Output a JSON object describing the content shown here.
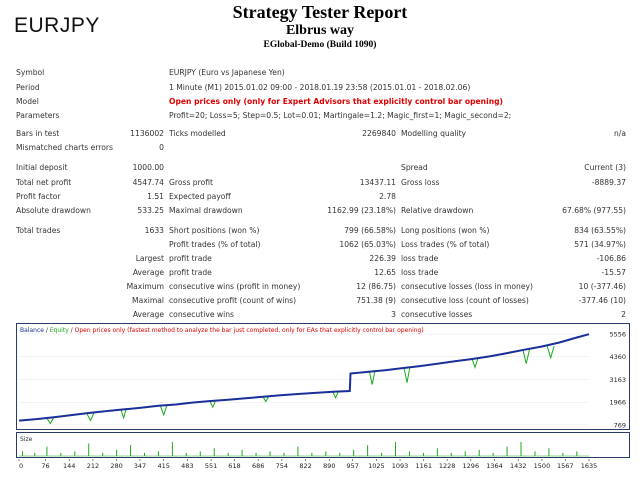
{
  "header": {
    "symbol": "EURJPY",
    "title": "Strategy Tester Report",
    "subtitle": "Elbrus way",
    "server": "EGlobal-Demo (Build 1090)"
  },
  "info": {
    "symbol_label": "Symbol",
    "symbol_value": "EURJPY (Euro vs Japanese Yen)",
    "period_label": "Period",
    "period_value": "1 Minute (M1) 2015.01.02 09:00 - 2018.01.19 23:58 (2015.01.01 - 2018.02.06)",
    "model_label": "Model",
    "model_value": "Open prices only (only for Expert Advisors that explicitly control bar opening)",
    "params_label": "Parameters",
    "params_value": "Profit=20; Loss=5; Step=0.5; Lot=0.01; Martingale=1.2; Magic_first=1; Magic_second=2;"
  },
  "bars": {
    "bars_label": "Bars in test",
    "bars_value": "1136002",
    "ticks_label": "Ticks modelled",
    "ticks_value": "2269840",
    "quality_label": "Modelling quality",
    "quality_value": "n/a",
    "mismatch_label": "Mismatched charts errors",
    "mismatch_value": "0"
  },
  "results": {
    "initial_deposit_label": "Initial deposit",
    "initial_deposit": "1000.00",
    "spread_label": "Spread",
    "spread": "Current (3)",
    "net_profit_label": "Total net profit",
    "net_profit": "4547.74",
    "gross_profit_label": "Gross profit",
    "gross_profit": "13437.11",
    "gross_loss_label": "Gross loss",
    "gross_loss": "-8889.37",
    "profit_factor_label": "Profit factor",
    "profit_factor": "1.51",
    "expected_payoff_label": "Expected payoff",
    "expected_payoff": "2.78",
    "abs_dd_label": "Absolute drawdown",
    "abs_dd": "533.25",
    "max_dd_label": "Maximal drawdown",
    "max_dd": "1162.99 (23.18%)",
    "rel_dd_label": "Relative drawdown",
    "rel_dd": "67.68% (977.55)"
  },
  "trades": {
    "total_label": "Total trades",
    "total": "1633",
    "short_label": "Short positions (won %)",
    "short": "799 (66.58%)",
    "long_label": "Long positions (won %)",
    "long": "834 (63.55%)",
    "profit_trades_label": "Profit trades (% of total)",
    "profit_trades": "1062 (65.03%)",
    "loss_trades_label": "Loss trades (% of total)",
    "loss_trades": "571 (34.97%)",
    "largest_label": "Largest",
    "largest_profit_label": "profit trade",
    "largest_profit": "226.39",
    "largest_loss_label": "loss trade",
    "largest_loss": "-106.86",
    "average_label": "Average",
    "average_profit_label": "profit trade",
    "average_profit": "12.65",
    "average_loss_label": "loss trade",
    "average_loss": "-15.57",
    "maximum_label": "Maximum",
    "max_cons_wins_label": "consecutive wins (profit in money)",
    "max_cons_wins": "12 (86.75)",
    "max_cons_losses_label": "consecutive losses (loss in money)",
    "max_cons_losses": "10 (-377.46)",
    "maximal_label": "Maximal",
    "maximal_cons_profit_label": "consecutive profit (count of wins)",
    "maximal_cons_profit": "751.38 (9)",
    "maximal_cons_loss_label": "consecutive loss (count of losses)",
    "maximal_cons_loss": "-377.46 (10)",
    "avg_label": "Average",
    "avg_cons_wins_label": "consecutive wins",
    "avg_cons_wins": "3",
    "avg_cons_losses_label": "consecutive losses",
    "avg_cons_losses": "2"
  },
  "chart_data": {
    "type": "line",
    "legend": {
      "balance": "Balance",
      "sep1": " / ",
      "equity": "Equity",
      "sep2": " / ",
      "note": "Open prices only (fastest method to analyze the bar just completed, only for EAs that explicitly control bar opening)"
    },
    "colors": {
      "balance": "#1a2f9a",
      "equity": "#1aaa1a",
      "note": "#e00000",
      "size": "#1aaa1a"
    },
    "y_ticks": [
      5556,
      4360,
      3163,
      1966,
      769
    ],
    "ylim": [
      769,
      5556
    ],
    "x_ticks": [
      0,
      76,
      144,
      212,
      280,
      347,
      415,
      483,
      551,
      618,
      686,
      754,
      822,
      890,
      957,
      1025,
      1093,
      1161,
      1228,
      1296,
      1364,
      1432,
      1500,
      1567,
      1635
    ],
    "xlim": [
      0,
      1635
    ],
    "series": [
      {
        "name": "Balance",
        "x": [
          0,
          50,
          100,
          150,
          200,
          250,
          300,
          350,
          400,
          450,
          500,
          550,
          600,
          650,
          700,
          750,
          800,
          850,
          900,
          949,
          951,
          1000,
          1050,
          1100,
          1150,
          1200,
          1250,
          1300,
          1350,
          1400,
          1450,
          1500,
          1550,
          1600,
          1635
        ],
        "values": [
          1000,
          1080,
          1180,
          1290,
          1400,
          1500,
          1590,
          1680,
          1780,
          1850,
          1950,
          2030,
          2100,
          2180,
          2250,
          2330,
          2400,
          2460,
          2520,
          2560,
          3480,
          3560,
          3650,
          3760,
          3870,
          3990,
          4120,
          4240,
          4380,
          4550,
          4730,
          4900,
          5110,
          5370,
          5548
        ]
      },
      {
        "name": "Equity",
        "x": [
          80,
          90,
          100,
          195,
          205,
          215,
          292,
          300,
          308,
          405,
          415,
          425,
          548,
          556,
          564,
          700,
          708,
          716,
          900,
          908,
          916,
          1005,
          1013,
          1021,
          1105,
          1113,
          1121,
          1300,
          1308,
          1316,
          1445,
          1455,
          1465,
          1515,
          1525,
          1535
        ],
        "values": [
          1120,
          850,
          1180,
          1360,
          1000,
          1410,
          1600,
          1150,
          1650,
          1800,
          1300,
          1830,
          2020,
          1700,
          2050,
          2250,
          2000,
          2270,
          2510,
          2200,
          2530,
          3580,
          2900,
          3610,
          3730,
          3000,
          3780,
          4230,
          3800,
          4260,
          4750,
          4000,
          4780,
          4910,
          4300,
          4920
        ]
      },
      {
        "name": "Size",
        "x": [
          10,
          45,
          80,
          120,
          160,
          200,
          240,
          280,
          320,
          360,
          400,
          440,
          480,
          520,
          560,
          600,
          640,
          680,
          720,
          760,
          800,
          840,
          880,
          920,
          960,
          1000,
          1040,
          1080,
          1120,
          1160,
          1200,
          1240,
          1280,
          1320,
          1360,
          1400,
          1440,
          1480,
          1520,
          1560,
          1600
        ],
        "values": [
          3,
          2,
          6,
          2,
          3,
          8,
          2,
          4,
          7,
          2,
          3,
          9,
          2,
          3,
          5,
          2,
          4,
          2,
          3,
          2,
          6,
          2,
          3,
          2,
          4,
          7,
          2,
          9,
          3,
          2,
          5,
          2,
          3,
          4,
          2,
          6,
          9,
          3,
          5,
          2,
          3
        ]
      }
    ]
  }
}
